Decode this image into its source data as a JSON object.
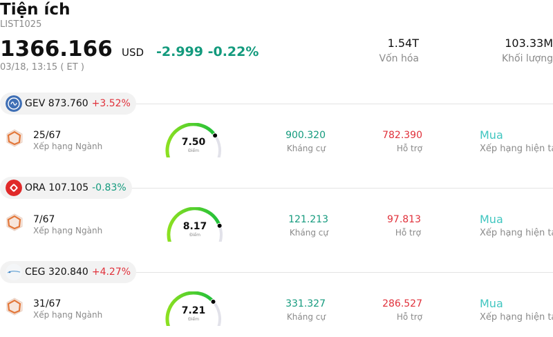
{
  "header": {
    "title": "Tiện ích",
    "code": "LIST1025",
    "price": "1366.166",
    "currency": "USD",
    "change": "-2.999",
    "change_pct": "-0.22%",
    "timestamp": "03/18, 13:15 ( ET )",
    "stats": [
      {
        "value": "1.54T",
        "label": "Vốn hóa"
      },
      {
        "value": "103.33M",
        "label": "Khối lượng"
      }
    ]
  },
  "stocks": [
    {
      "ticker": "GEV",
      "price": "873.760",
      "change": "+3.52%",
      "direction": "up",
      "logo_icon": "ge-vernova-logo-icon",
      "rank": "25/67",
      "rank_label": "Xếp hạng Ngành",
      "score": "7.50",
      "score_value": 7.5,
      "score_label": "Điểm",
      "resistance": "900.320",
      "resistance_label": "Kháng cự",
      "support": "782.390",
      "support_label": "Hỗ trợ",
      "rating": "Mua",
      "rating_label": "Xếp hạng hiện tại"
    },
    {
      "ticker": "ORA",
      "price": "107.105",
      "change": "-0.83%",
      "direction": "down",
      "logo_icon": "ormat-logo-icon",
      "rank": "7/67",
      "rank_label": "Xếp hạng Ngành",
      "score": "8.17",
      "score_value": 8.17,
      "score_label": "Điểm",
      "resistance": "121.213",
      "resistance_label": "Kháng cự",
      "support": "97.813",
      "support_label": "Hỗ trợ",
      "rating": "Mua",
      "rating_label": "Xếp hạng hiện tại"
    },
    {
      "ticker": "CEG",
      "price": "320.840",
      "change": "+4.27%",
      "direction": "up",
      "logo_icon": "constellation-logo-icon",
      "rank": "31/67",
      "rank_label": "Xếp hạng Ngành",
      "score": "7.21",
      "score_value": 7.21,
      "score_label": "Điểm",
      "resistance": "331.327",
      "resistance_label": "Kháng cự",
      "support": "286.527",
      "support_label": "Hỗ trợ",
      "rating": "Mua",
      "rating_label": "Xếp hạng hiện tại"
    }
  ],
  "colors": {
    "up": "#e0303a",
    "down": "#139a7d",
    "rating": "#40c6c0",
    "gauge_track": "#e2e2ea",
    "gauge_fill_light": "#8be021",
    "gauge_fill_dark": "#1fbf3a"
  }
}
